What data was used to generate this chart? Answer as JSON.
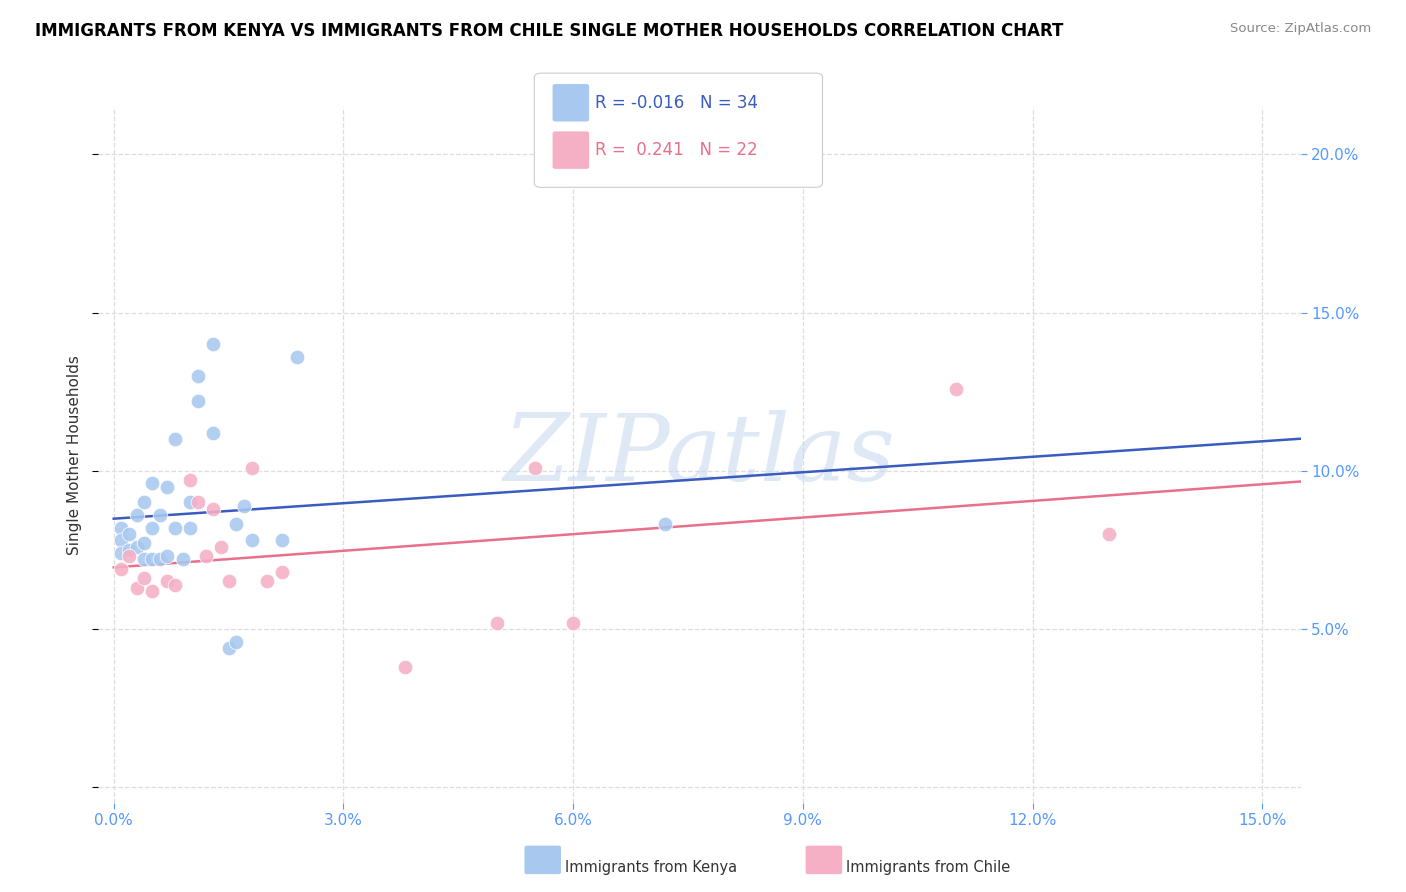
{
  "title": "IMMIGRANTS FROM KENYA VS IMMIGRANTS FROM CHILE SINGLE MOTHER HOUSEHOLDS CORRELATION CHART",
  "source": "Source: ZipAtlas.com",
  "ylabel": "Single Mother Households",
  "xlim": [
    -0.002,
    0.155
  ],
  "ylim": [
    -0.005,
    0.215
  ],
  "kenya_color": "#a8c8f0",
  "chile_color": "#f5b0c5",
  "kenya_line_color": "#3a5bbf",
  "chile_line_color": "#e8708a",
  "kenya_r": "-0.016",
  "kenya_n": "34",
  "chile_r": "0.241",
  "chile_n": "22",
  "kenya_x": [
    0.001,
    0.001,
    0.001,
    0.002,
    0.002,
    0.003,
    0.003,
    0.004,
    0.004,
    0.004,
    0.005,
    0.005,
    0.005,
    0.006,
    0.006,
    0.007,
    0.007,
    0.008,
    0.008,
    0.009,
    0.01,
    0.01,
    0.011,
    0.011,
    0.013,
    0.013,
    0.015,
    0.016,
    0.016,
    0.017,
    0.018,
    0.022,
    0.024,
    0.072
  ],
  "kenya_y": [
    0.082,
    0.078,
    0.074,
    0.08,
    0.075,
    0.076,
    0.086,
    0.072,
    0.077,
    0.09,
    0.072,
    0.082,
    0.096,
    0.072,
    0.086,
    0.073,
    0.095,
    0.082,
    0.11,
    0.072,
    0.082,
    0.09,
    0.122,
    0.13,
    0.112,
    0.14,
    0.044,
    0.046,
    0.083,
    0.089,
    0.078,
    0.078,
    0.136,
    0.083
  ],
  "chile_x": [
    0.001,
    0.002,
    0.003,
    0.004,
    0.005,
    0.007,
    0.008,
    0.01,
    0.011,
    0.012,
    0.013,
    0.014,
    0.015,
    0.018,
    0.02,
    0.022,
    0.038,
    0.05,
    0.055,
    0.06,
    0.11,
    0.13
  ],
  "chile_y": [
    0.069,
    0.073,
    0.063,
    0.066,
    0.062,
    0.065,
    0.064,
    0.097,
    0.09,
    0.073,
    0.088,
    0.076,
    0.065,
    0.101,
    0.065,
    0.068,
    0.038,
    0.052,
    0.101,
    0.052,
    0.126,
    0.08
  ],
  "background_color": "#ffffff",
  "grid_color": "#dddddd",
  "tick_color": "#5599ff",
  "watermark": "ZIPatlas"
}
